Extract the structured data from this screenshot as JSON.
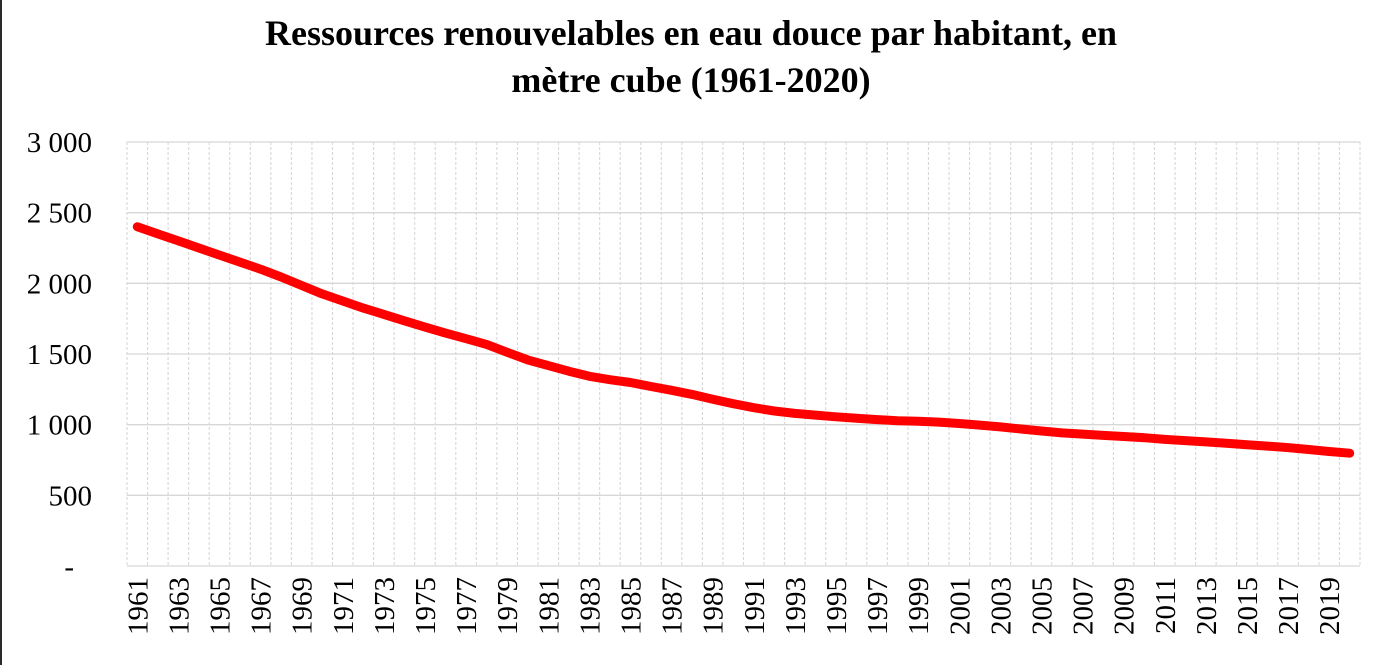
{
  "title": {
    "line1": "Ressources renouvelables en eau douce par habitant, en",
    "line2": "mètre cube (1961-2020)"
  },
  "colors": {
    "series_line": "#ff0000",
    "gridline": "#d7d7d7",
    "text": "#000000",
    "background": "#ffffff"
  },
  "chart_data": {
    "type": "line",
    "title": "Ressources renouvelables en eau douce par habitant, en mètre cube (1961-2020)",
    "xlabel": "",
    "ylabel": "",
    "ylim": [
      0,
      3000
    ],
    "grid": "both",
    "legend": "none",
    "x": [
      1961,
      1962,
      1963,
      1964,
      1965,
      1966,
      1967,
      1968,
      1969,
      1970,
      1971,
      1972,
      1973,
      1974,
      1975,
      1976,
      1977,
      1978,
      1979,
      1980,
      1981,
      1982,
      1983,
      1984,
      1985,
      1986,
      1987,
      1988,
      1989,
      1990,
      1991,
      1992,
      1993,
      1994,
      1995,
      1996,
      1997,
      1998,
      1999,
      2000,
      2001,
      2002,
      2003,
      2004,
      2005,
      2006,
      2007,
      2008,
      2009,
      2010,
      2011,
      2012,
      2013,
      2014,
      2015,
      2016,
      2017,
      2018,
      2019,
      2020
    ],
    "series": [
      {
        "color": "#ff0000",
        "values": [
          2400,
          2350,
          2300,
          2250,
          2200,
          2150,
          2100,
          2045,
          1985,
          1925,
          1875,
          1825,
          1780,
          1735,
          1690,
          1648,
          1608,
          1568,
          1512,
          1458,
          1418,
          1378,
          1342,
          1318,
          1298,
          1270,
          1243,
          1214,
          1180,
          1148,
          1120,
          1097,
          1080,
          1068,
          1056,
          1045,
          1036,
          1028,
          1024,
          1018,
          1008,
          997,
          984,
          969,
          955,
          942,
          933,
          924,
          916,
          908,
          896,
          887,
          878,
          868,
          858,
          848,
          838,
          824,
          810,
          798
        ]
      }
    ],
    "y_ticks": {
      "values": [
        3000,
        2500,
        2000,
        1500,
        1000,
        500,
        0
      ],
      "labels": [
        "3 000",
        "2 500",
        "2 000",
        "1 500",
        "1 000",
        "500",
        "-"
      ]
    },
    "x_tick_labels": [
      "1961",
      "1963",
      "1965",
      "1967",
      "1969",
      "1971",
      "1973",
      "1975",
      "1977",
      "1979",
      "1981",
      "1983",
      "1985",
      "1987",
      "1989",
      "1991",
      "1993",
      "1995",
      "1997",
      "1999",
      "2001",
      "2003",
      "2005",
      "2007",
      "2009",
      "2011",
      "2013",
      "2015",
      "2017",
      "2019"
    ]
  }
}
